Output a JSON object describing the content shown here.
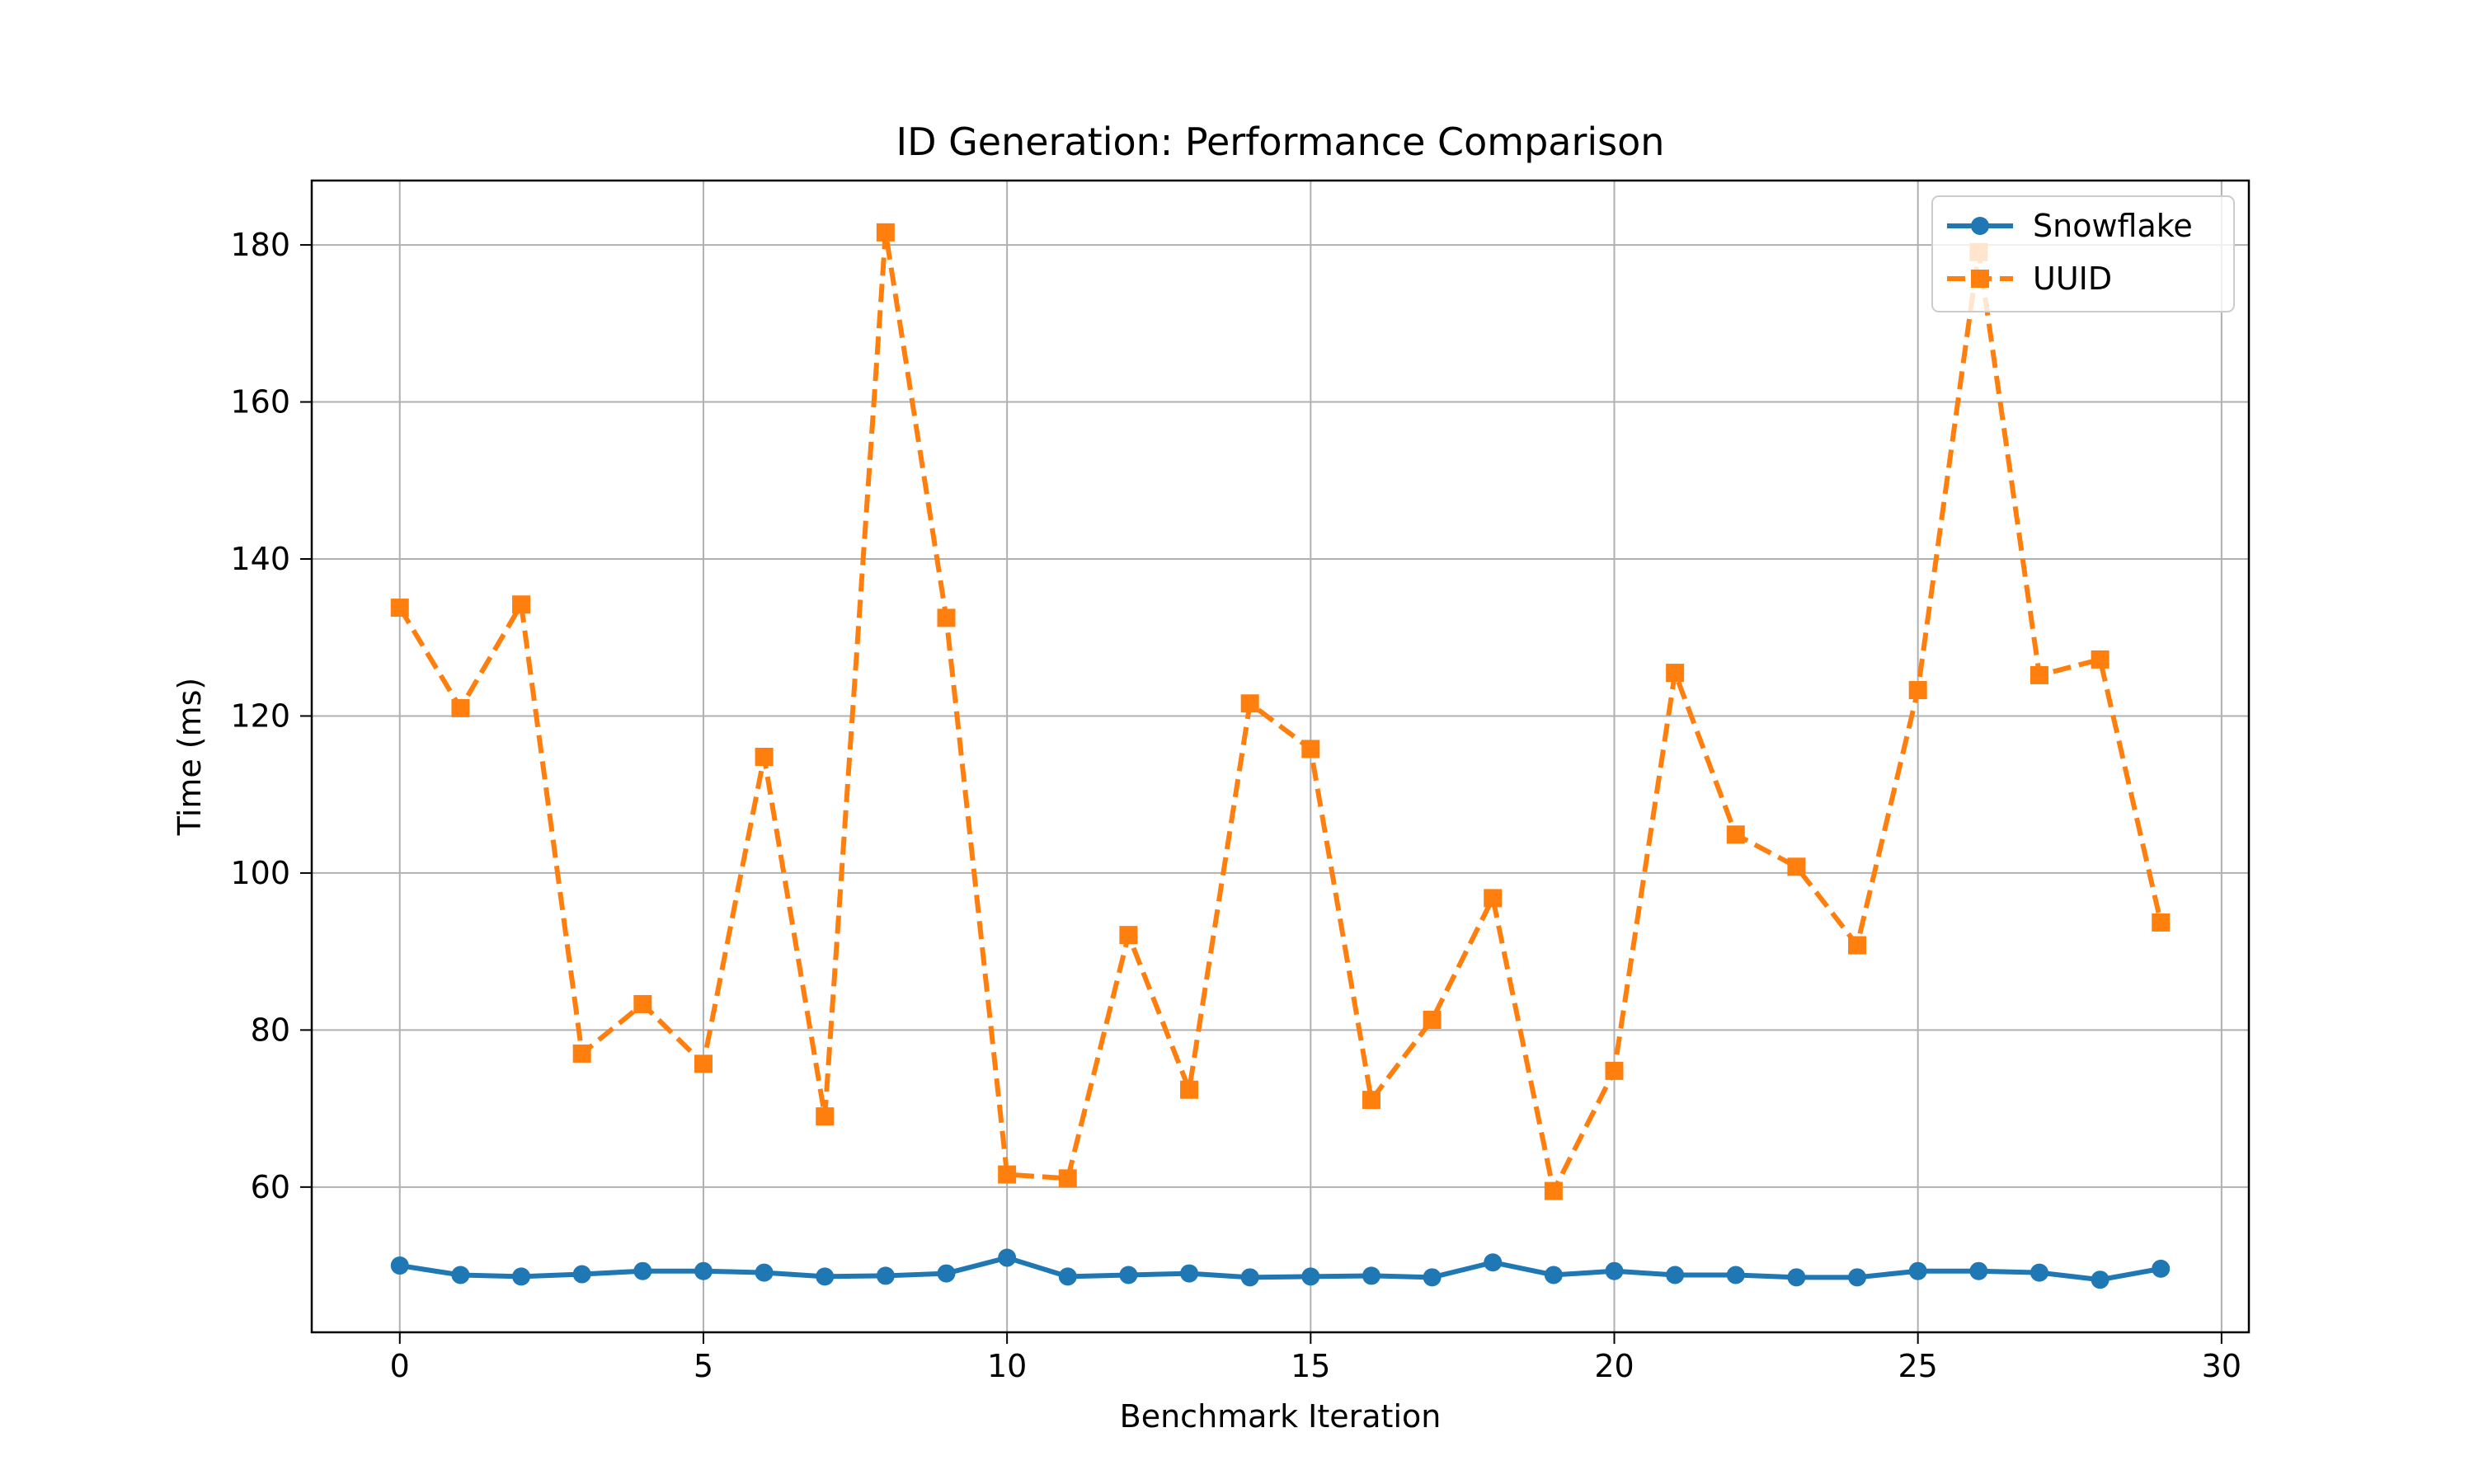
{
  "chart_data": {
    "type": "line",
    "title": "ID Generation: Performance Comparison",
    "xlabel": "Benchmark Iteration",
    "ylabel": "Time (ms)",
    "xlim": [
      -1.45,
      30.45
    ],
    "ylim": [
      41.5,
      188.2
    ],
    "xticks": [
      0,
      5,
      10,
      15,
      20,
      25,
      30
    ],
    "yticks": [
      60,
      80,
      100,
      120,
      140,
      160,
      180
    ],
    "grid": true,
    "legend_position": "upper right",
    "x": [
      0,
      1,
      2,
      3,
      4,
      5,
      6,
      7,
      8,
      9,
      10,
      11,
      12,
      13,
      14,
      15,
      16,
      17,
      18,
      19,
      20,
      21,
      22,
      23,
      24,
      25,
      26,
      27,
      28,
      29
    ],
    "series": [
      {
        "name": "Snowflake",
        "color": "#1f77b4",
        "marker": "circle",
        "linestyle": "solid",
        "values": [
          50.0,
          48.8,
          48.6,
          48.9,
          49.3,
          49.3,
          49.1,
          48.6,
          48.7,
          49.0,
          51.0,
          48.6,
          48.8,
          49.0,
          48.5,
          48.6,
          48.7,
          48.5,
          50.4,
          48.8,
          49.3,
          48.8,
          48.8,
          48.5,
          48.5,
          49.3,
          49.3,
          49.1,
          48.2,
          49.6
        ]
      },
      {
        "name": "UUID",
        "color": "#ff7f0e",
        "marker": "square",
        "linestyle": "dashed",
        "values": [
          133.8,
          121.0,
          134.2,
          77.0,
          83.3,
          75.7,
          114.8,
          69.0,
          181.6,
          132.5,
          61.6,
          61.1,
          92.1,
          72.4,
          121.6,
          115.8,
          71.1,
          81.3,
          96.8,
          59.5,
          74.8,
          125.5,
          104.9,
          100.8,
          90.8,
          123.3,
          179.1,
          125.2,
          127.2,
          93.7
        ]
      }
    ]
  }
}
